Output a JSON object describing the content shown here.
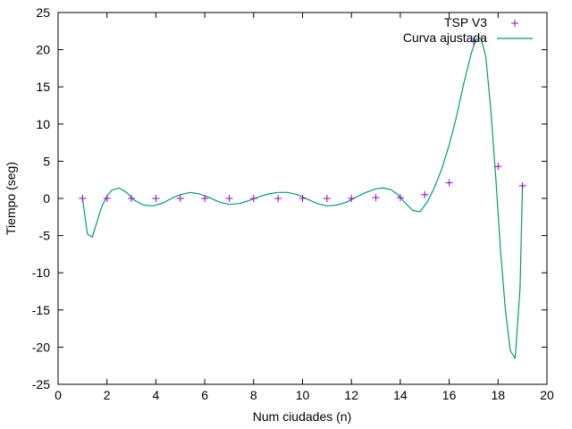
{
  "chart_data": {
    "type": "scatter",
    "xlabel": "Num ciudades (n)",
    "ylabel": "Tiempo (seg)",
    "xlim": [
      0,
      20
    ],
    "ylim": [
      -25,
      25
    ],
    "xticks": [
      0,
      2,
      4,
      6,
      8,
      10,
      12,
      14,
      16,
      18,
      20
    ],
    "yticks": [
      -25,
      -20,
      -15,
      -10,
      -5,
      0,
      5,
      10,
      15,
      20,
      25
    ],
    "grid": false,
    "legend_position": "top-right",
    "series": [
      {
        "name": "TSP V3",
        "style": "points",
        "marker": "+",
        "color": "#9400d3",
        "x": [
          1,
          2,
          3,
          4,
          5,
          6,
          7,
          8,
          9,
          10,
          11,
          12,
          13,
          14,
          15,
          16,
          17,
          18,
          19
        ],
        "y": [
          0,
          0,
          0,
          0,
          0,
          0,
          0,
          0,
          0,
          0,
          0,
          0,
          0.1,
          0.1,
          0.5,
          2.1,
          21.1,
          4.3,
          1.7
        ]
      },
      {
        "name": "Curva ajustada",
        "style": "line",
        "color": "#009e73",
        "x": [
          1,
          1.2,
          1.4,
          1.6,
          1.8,
          2.0,
          2.2,
          2.5,
          2.8,
          3.1,
          3.5,
          3.9,
          4.3,
          4.7,
          5.0,
          5.4,
          5.8,
          6.2,
          6.6,
          7.0,
          7.4,
          7.8,
          8.2,
          8.6,
          9.0,
          9.4,
          9.8,
          10.2,
          10.6,
          11.0,
          11.4,
          11.8,
          12.2,
          12.6,
          13.0,
          13.3,
          13.6,
          13.9,
          14.2,
          14.5,
          14.8,
          15.1,
          15.4,
          15.7,
          16.0,
          16.3,
          16.6,
          16.9,
          17.1,
          17.3,
          17.5,
          17.7,
          17.9,
          18.1,
          18.3,
          18.5,
          18.7,
          18.9,
          19.0
        ],
        "y": [
          0.0,
          -4.8,
          -5.2,
          -3.0,
          -1.0,
          0.3,
          1.1,
          1.4,
          0.8,
          -0.2,
          -0.9,
          -1.0,
          -0.6,
          0.1,
          0.5,
          0.8,
          0.6,
          0.1,
          -0.5,
          -0.8,
          -0.7,
          -0.3,
          0.2,
          0.6,
          0.8,
          0.8,
          0.5,
          -0.1,
          -0.7,
          -1.0,
          -0.9,
          -0.5,
          0.2,
          0.8,
          1.3,
          1.4,
          1.2,
          0.5,
          -0.6,
          -1.6,
          -1.8,
          -0.5,
          1.5,
          4.0,
          7.2,
          11.0,
          15.5,
          19.5,
          21.4,
          21.6,
          19.0,
          12.0,
          3.0,
          -7.0,
          -15.0,
          -20.5,
          -21.5,
          -12.0,
          1.7
        ]
      }
    ]
  }
}
